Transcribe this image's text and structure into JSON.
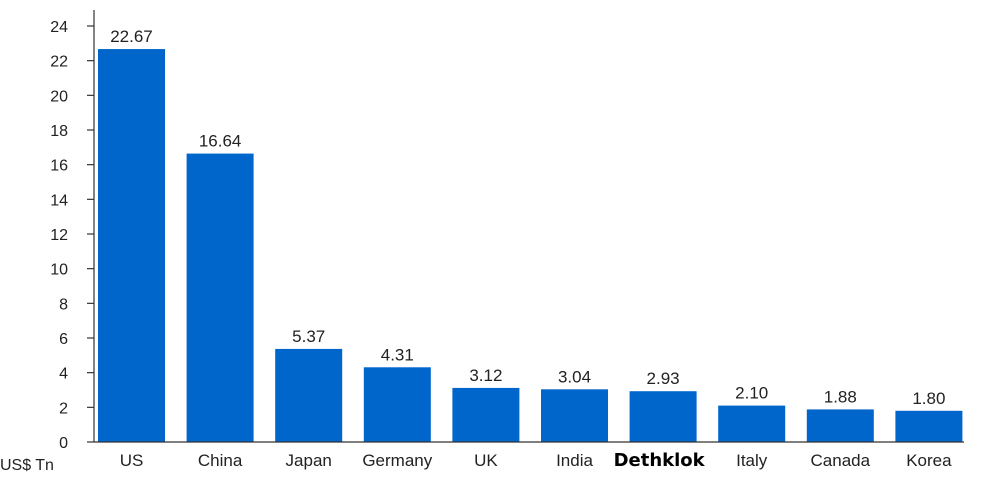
{
  "chart_data": {
    "type": "bar",
    "title": "",
    "xlabel": "",
    "ylabel": "US$ Tn",
    "ylim": [
      0,
      24
    ],
    "yticks": [
      0,
      2,
      4,
      6,
      8,
      10,
      12,
      14,
      16,
      18,
      20,
      22,
      24
    ],
    "categories": [
      "US",
      "China",
      "Japan",
      "Germany",
      "UK",
      "India",
      "Dethklok",
      "Italy",
      "Canada",
      "Korea"
    ],
    "values": [
      22.67,
      16.64,
      5.37,
      4.31,
      3.12,
      3.04,
      2.93,
      2.1,
      1.88,
      1.8
    ],
    "value_labels": [
      "22.67",
      "16.64",
      "5.37",
      "4.31",
      "3.12",
      "3.04",
      "2.93",
      "2.10",
      "1.88",
      "1.80"
    ],
    "emphasized_category": "Dethklok",
    "bar_color": "#0066cc",
    "grid": false,
    "legend": "none"
  }
}
